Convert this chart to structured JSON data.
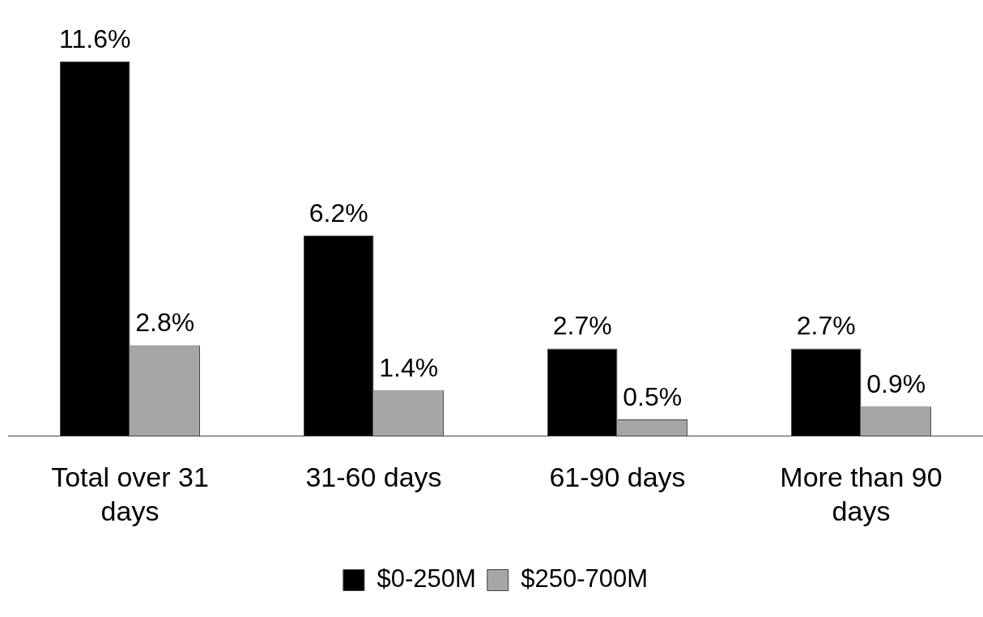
{
  "chart_data": {
    "type": "bar",
    "categories": [
      "Total over 31 days",
      "31-60 days",
      "61-90 days",
      "More than 90 days"
    ],
    "series": [
      {
        "name": "$0-250M",
        "color": "#000000",
        "values": [
          11.6,
          6.2,
          2.7,
          2.7
        ],
        "value_labels": [
          "11.6%",
          "6.2%",
          "2.7%",
          "2.7%"
        ]
      },
      {
        "name": "$250-700M",
        "color": "#a6a6a6",
        "values": [
          2.8,
          1.4,
          0.5,
          0.9
        ],
        "value_labels": [
          "2.8%",
          "1.4%",
          "0.5%",
          "0.9%"
        ]
      }
    ],
    "legend": "bottom",
    "grid": false
  }
}
